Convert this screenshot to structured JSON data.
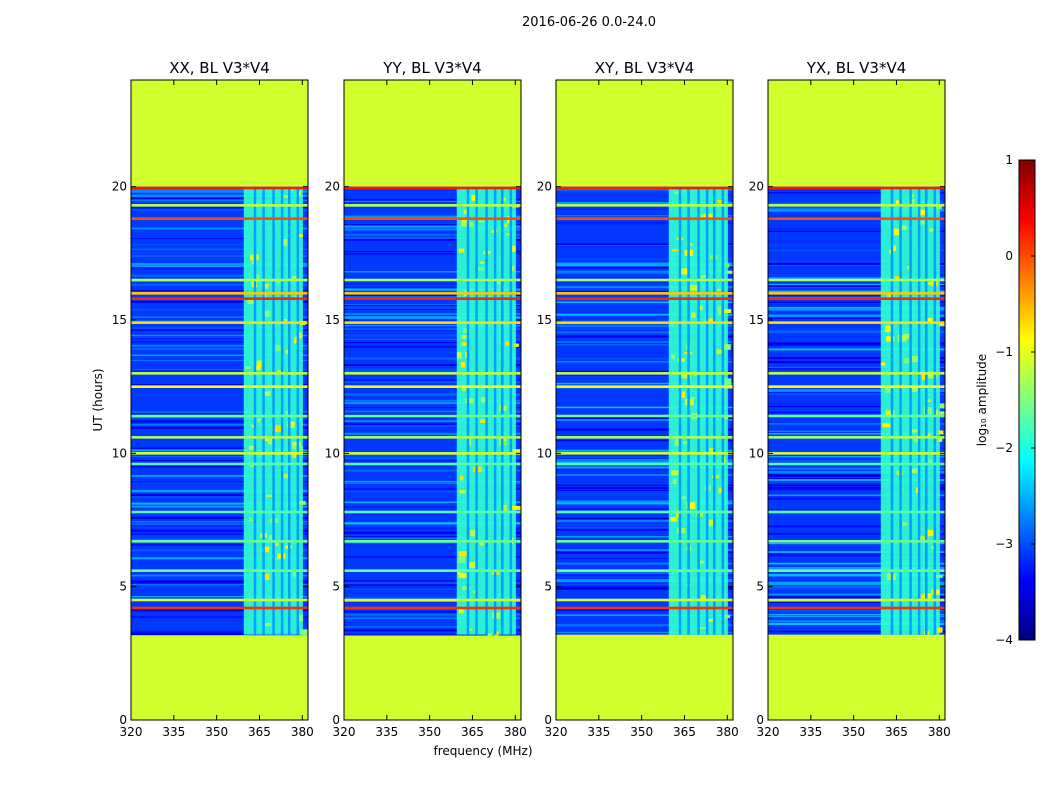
{
  "chart_data": {
    "type": "heatmap",
    "suptitle": "2016-06-26 0.0-24.0",
    "xlabel": "frequency (MHz)",
    "ylabel": "UT (hours)",
    "xlim": [
      320,
      382
    ],
    "ylim": [
      0,
      24
    ],
    "xticks": [
      320,
      335,
      350,
      365,
      380
    ],
    "yticks": [
      0,
      5,
      10,
      15,
      20
    ],
    "colorbar": {
      "label": "log₁₀ amplitude",
      "range": [
        -4,
        1
      ],
      "ticks": [
        1,
        0,
        -1,
        -2,
        -3,
        -4
      ],
      "colormap": [
        "#00007f",
        "#0000ff",
        "#007fff",
        "#00ffff",
        "#7fff7f",
        "#ffff00",
        "#ff7f00",
        "#ff0000",
        "#7f0000"
      ]
    },
    "data_ut_range": [
      3.2,
      20.0
    ],
    "empty_fill_value": -1.1,
    "background_value": -3.1,
    "rfi_band_mhz": [
      359.5,
      380.2
    ],
    "rfi_lines_mhz": [
      363,
      366,
      369.5,
      372.5,
      375,
      378
    ],
    "bright_rows": [
      {
        "ut": 4.2,
        "value": 0.15
      },
      {
        "ut": 4.5,
        "value": -1.1
      },
      {
        "ut": 5.6,
        "value": -1.6
      },
      {
        "ut": 6.7,
        "value": -1.6
      },
      {
        "ut": 7.8,
        "value": -1.7
      },
      {
        "ut": 9.6,
        "value": -1.7
      },
      {
        "ut": 10.0,
        "value": -1.1
      },
      {
        "ut": 10.6,
        "value": -1.3
      },
      {
        "ut": 11.4,
        "value": -1.6
      },
      {
        "ut": 12.5,
        "value": -0.9
      },
      {
        "ut": 13.0,
        "value": -1.2
      },
      {
        "ut": 14.9,
        "value": -0.7
      },
      {
        "ut": 15.8,
        "value": 0.2
      },
      {
        "ut": 16.0,
        "value": -0.6
      },
      {
        "ut": 16.5,
        "value": -1.3
      },
      {
        "ut": 18.8,
        "value": 0.0
      },
      {
        "ut": 19.3,
        "value": -1.2
      },
      {
        "ut": 19.95,
        "value": 0.25
      }
    ],
    "panels": [
      {
        "title": "XX, BL V3*V4"
      },
      {
        "title": "YY, BL V3*V4"
      },
      {
        "title": "XY, BL V3*V4"
      },
      {
        "title": "YX, BL V3*V4"
      }
    ]
  }
}
